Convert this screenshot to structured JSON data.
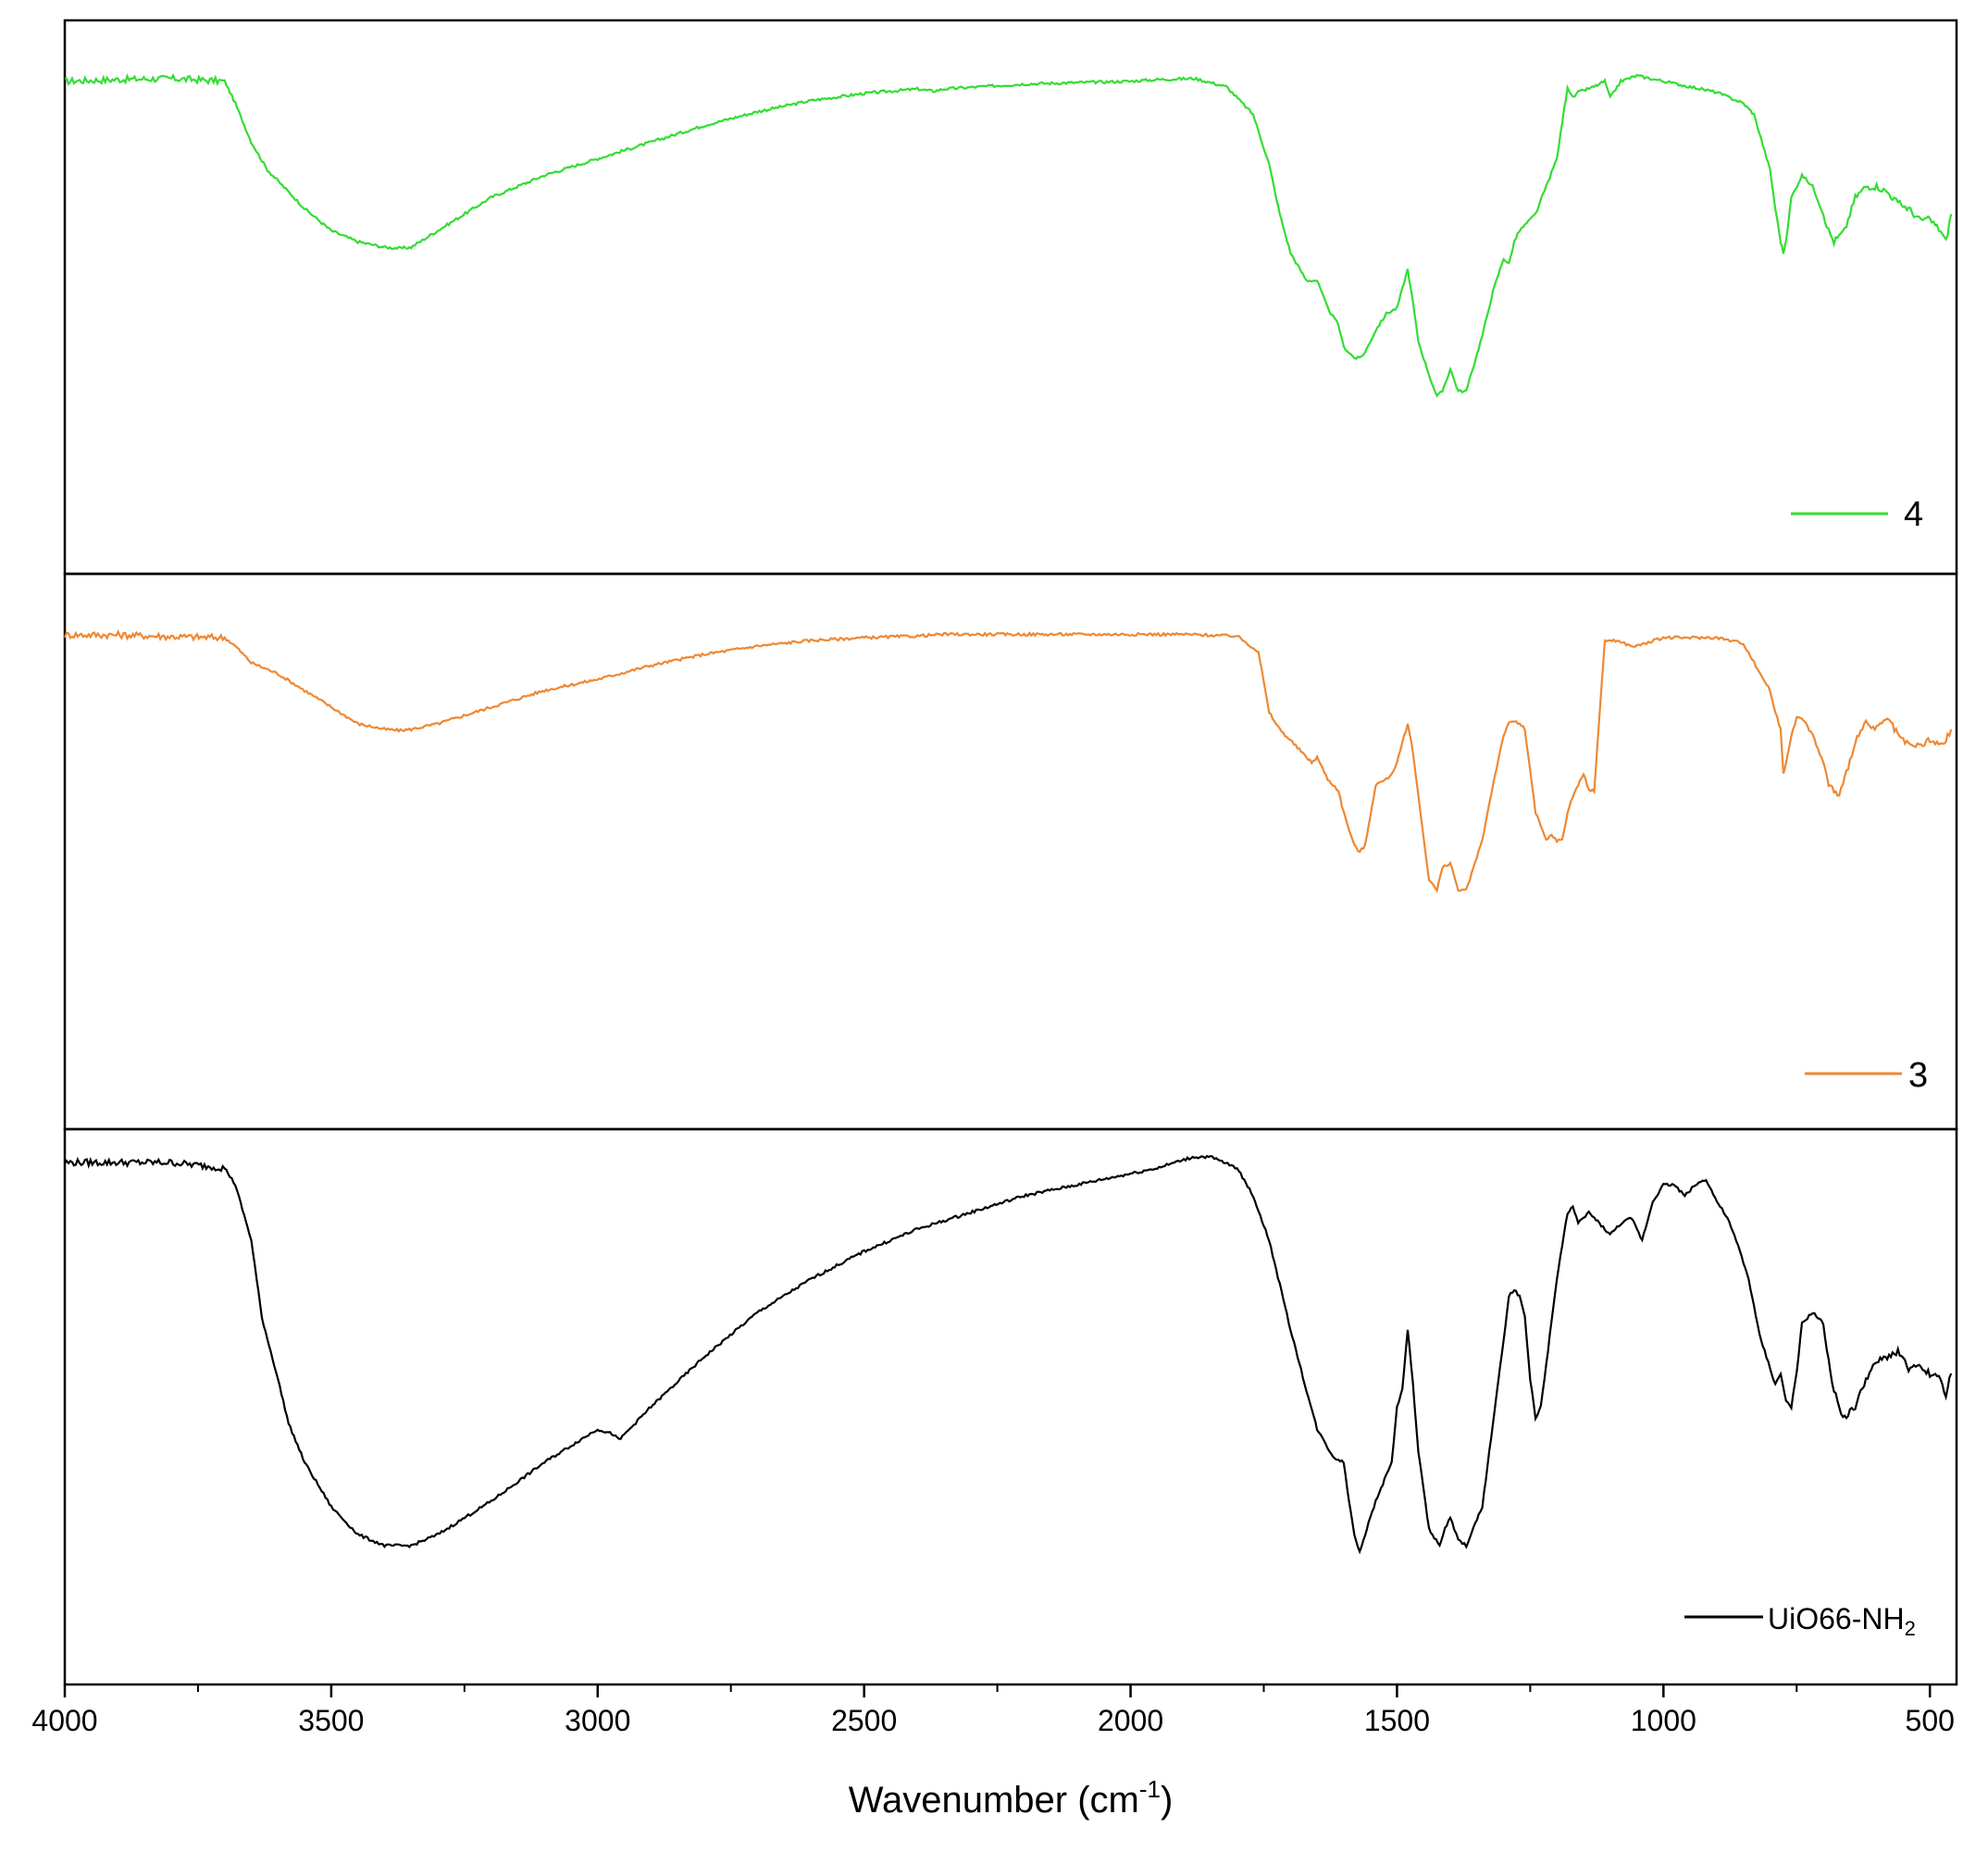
{
  "chart_data": {
    "type": "line",
    "xlabel": "Wavenumber (cm",
    "xlabel_superscript": "-1",
    "xlabel_suffix": ")",
    "xlim": [
      4000,
      450
    ],
    "x_ticks": [
      4000,
      3500,
      3000,
      2500,
      2000,
      1500,
      1000,
      500
    ],
    "x_tick_labels": [
      "4000",
      "3500",
      "3000",
      "2500",
      "2000",
      "1500",
      "1000",
      "500"
    ],
    "y_axis_shown": false,
    "grid": false,
    "layout": "stacked-panels",
    "panels": [
      {
        "series": [
          {
            "name": "4",
            "color": "#33dd33",
            "legend_position": "bottom-right",
            "x": [
              4000,
              3900,
              3800,
              3700,
              3680,
              3650,
              3620,
              3550,
              3500,
              3450,
              3400,
              3370,
              3350,
              3300,
              3200,
              3100,
              3000,
              2900,
              2800,
              2700,
              2600,
              2500,
              2400,
              2370,
              2350,
              2200,
              2000,
              1950,
              1880,
              1820,
              1770,
              1740,
              1720,
              1700,
              1670,
              1650,
              1630,
              1610,
              1600,
              1580,
              1570,
              1560,
              1540,
              1520,
              1500,
              1480,
              1470,
              1460,
              1440,
              1425,
              1415,
              1400,
              1385,
              1370,
              1340,
              1320,
              1300,
              1290,
              1280,
              1270,
              1240,
              1200,
              1180,
              1170,
              1160,
              1130,
              1110,
              1100,
              1080,
              1050,
              1000,
              950,
              900,
              850,
              830,
              800,
              790,
              780,
              775,
              770,
              760,
              750,
              740,
              720,
              700,
              690,
              680,
              660,
              640,
              620,
              600,
              580,
              560,
              540,
              520,
              500,
              480,
              470,
              460
            ],
            "y": [
              0.89,
              0.893,
              0.895,
              0.89,
              0.85,
              0.78,
              0.73,
              0.66,
              0.62,
              0.6,
              0.59,
              0.588,
              0.59,
              0.62,
              0.68,
              0.72,
              0.75,
              0.78,
              0.81,
              0.835,
              0.855,
              0.868,
              0.876,
              0.872,
              0.876,
              0.885,
              0.89,
              0.893,
              0.895,
              0.88,
              0.83,
              0.74,
              0.65,
              0.58,
              0.53,
              0.53,
              0.48,
              0.45,
              0.41,
              0.39,
              0.39,
              0.4,
              0.44,
              0.47,
              0.48,
              0.55,
              0.49,
              0.42,
              0.36,
              0.32,
              0.33,
              0.37,
              0.33,
              0.33,
              0.43,
              0.51,
              0.57,
              0.56,
              0.6,
              0.62,
              0.65,
              0.75,
              0.88,
              0.86,
              0.87,
              0.88,
              0.89,
              0.86,
              0.89,
              0.9,
              0.89,
              0.88,
              0.87,
              0.85,
              0.83,
              0.73,
              0.66,
              0.6,
              0.58,
              0.6,
              0.68,
              0.7,
              0.72,
              0.7,
              0.65,
              0.62,
              0.6,
              0.62,
              0.68,
              0.7,
              0.7,
              0.69,
              0.67,
              0.66,
              0.64,
              0.64,
              0.62,
              0.6,
              0.65
            ]
          }
        ]
      },
      {
        "series": [
          {
            "name": "3",
            "color": "#ee8833",
            "legend_position": "bottom-right",
            "x": [
              4000,
              3900,
              3800,
              3700,
              3680,
              3650,
              3600,
              3550,
              3500,
              3450,
              3400,
              3370,
              3350,
              3300,
              3200,
              3100,
              3000,
              2900,
              2800,
              2700,
              2600,
              2500,
              2400,
              2350,
              2200,
              2000,
              1900,
              1800,
              1760,
              1740,
              1720,
              1700,
              1680,
              1660,
              1650,
              1630,
              1610,
              1600,
              1580,
              1570,
              1560,
              1540,
              1520,
              1510,
              1500,
              1480,
              1470,
              1460,
              1440,
              1425,
              1415,
              1400,
              1385,
              1370,
              1340,
              1320,
              1300,
              1290,
              1280,
              1270,
              1260,
              1240,
              1220,
              1210,
              1200,
              1190,
              1180,
              1170,
              1150,
              1140,
              1130,
              1110,
              1090,
              1060,
              1050,
              1000,
              950,
              900,
              850,
              830,
              800,
              790,
              780,
              775,
              770,
              760,
              750,
              740,
              720,
              700,
              690,
              680,
              670,
              660,
              640,
              620,
              600,
              580,
              560,
              540,
              520,
              500,
              480,
              470,
              460
            ],
            "y": [
              0.89,
              0.89,
              0.887,
              0.885,
              0.87,
              0.84,
              0.82,
              0.79,
              0.76,
              0.73,
              0.72,
              0.718,
              0.72,
              0.73,
              0.76,
              0.79,
              0.81,
              0.835,
              0.855,
              0.87,
              0.88,
              0.885,
              0.888,
              0.891,
              0.891,
              0.891,
              0.891,
              0.888,
              0.86,
              0.75,
              0.72,
              0.7,
              0.68,
              0.66,
              0.67,
              0.63,
              0.61,
              0.57,
              0.51,
              0.5,
              0.51,
              0.62,
              0.63,
              0.64,
              0.66,
              0.73,
              0.68,
              0.6,
              0.45,
              0.43,
              0.47,
              0.48,
              0.43,
              0.43,
              0.52,
              0.62,
              0.71,
              0.73,
              0.735,
              0.73,
              0.72,
              0.57,
              0.52,
              0.53,
              0.52,
              0.52,
              0.57,
              0.6,
              0.64,
              0.61,
              0.61,
              0.88,
              0.88,
              0.87,
              0.87,
              0.885,
              0.885,
              0.885,
              0.875,
              0.84,
              0.79,
              0.75,
              0.72,
              0.64,
              0.66,
              0.71,
              0.74,
              0.74,
              0.71,
              0.66,
              0.62,
              0.61,
              0.6,
              0.63,
              0.7,
              0.73,
              0.72,
              0.74,
              0.71,
              0.69,
              0.69,
              0.7,
              0.69,
              0.7,
              0.72
            ]
          }
        ]
      },
      {
        "series": [
          {
            "name": "UiO66-NH",
            "name_subscript": "2",
            "color": "#000000",
            "legend_position": "bottom-right",
            "x": [
              4000,
              3900,
              3800,
              3700,
              3680,
              3650,
              3630,
              3600,
              3580,
              3550,
              3500,
              3450,
              3400,
              3370,
              3350,
              3300,
              3250,
              3200,
              3100,
              3000,
              2970,
              2960,
              2950,
              2900,
              2800,
              2700,
              2600,
              2500,
              2400,
              2300,
              2200,
              2100,
              2000,
              1950,
              1900,
              1880,
              1850,
              1800,
              1770,
              1740,
              1720,
              1700,
              1670,
              1650,
              1620,
              1600,
              1590,
              1580,
              1570,
              1560,
              1540,
              1510,
              1500,
              1490,
              1480,
              1470,
              1460,
              1440,
              1420,
              1410,
              1400,
              1385,
              1370,
              1340,
              1320,
              1300,
              1290,
              1280,
              1270,
              1260,
              1250,
              1240,
              1230,
              1200,
              1180,
              1170,
              1160,
              1140,
              1120,
              1100,
              1080,
              1060,
              1040,
              1020,
              1000,
              990,
              980,
              960,
              940,
              920,
              900,
              880,
              860,
              840,
              820,
              800,
              790,
              780,
              770,
              760,
              750,
              740,
              720,
              700,
              690,
              680,
              670,
              660,
              640,
              620,
              600,
              580,
              560,
              540,
              520,
              500,
              480,
              470,
              460
            ],
            "y": [
              0.94,
              0.94,
              0.94,
              0.93,
              0.9,
              0.8,
              0.66,
              0.55,
              0.47,
              0.4,
              0.32,
              0.27,
              0.25,
              0.25,
              0.25,
              0.27,
              0.3,
              0.33,
              0.4,
              0.46,
              0.45,
              0.44,
              0.45,
              0.5,
              0.59,
              0.67,
              0.73,
              0.78,
              0.82,
              0.85,
              0.88,
              0.9,
              0.92,
              0.93,
              0.945,
              0.95,
              0.95,
              0.93,
              0.88,
              0.8,
              0.72,
              0.64,
              0.53,
              0.46,
              0.41,
              0.4,
              0.33,
              0.27,
              0.24,
              0.27,
              0.33,
              0.4,
              0.5,
              0.53,
              0.64,
              0.54,
              0.42,
              0.28,
              0.25,
              0.28,
              0.3,
              0.26,
              0.25,
              0.32,
              0.47,
              0.62,
              0.7,
              0.71,
              0.7,
              0.66,
              0.55,
              0.48,
              0.5,
              0.73,
              0.85,
              0.86,
              0.83,
              0.85,
              0.83,
              0.81,
              0.83,
              0.84,
              0.8,
              0.87,
              0.9,
              0.9,
              0.9,
              0.88,
              0.9,
              0.91,
              0.87,
              0.84,
              0.79,
              0.73,
              0.63,
              0.57,
              0.54,
              0.56,
              0.51,
              0.5,
              0.56,
              0.65,
              0.67,
              0.65,
              0.58,
              0.53,
              0.5,
              0.48,
              0.5,
              0.55,
              0.58,
              0.59,
              0.6,
              0.57,
              0.57,
              0.56,
              0.55,
              0.52,
              0.56
            ]
          }
        ]
      }
    ]
  }
}
